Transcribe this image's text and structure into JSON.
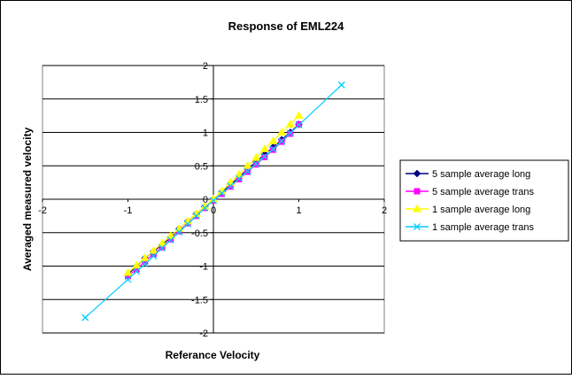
{
  "chart_data": {
    "type": "scatter",
    "title": "Response of EML224",
    "xlabel": "Referance Velocity",
    "ylabel": "Averaged measured velocity",
    "xlim": [
      -2,
      2
    ],
    "ylim": [
      -2,
      2
    ],
    "x_ticks": [
      "-2",
      "-1",
      "0",
      "1",
      "2"
    ],
    "y_ticks": [
      "-2",
      "-1.5",
      "-1",
      "-0.5",
      "0",
      "0.5",
      "1",
      "1.5",
      "2"
    ],
    "grid": "horizontal",
    "legend_position": "right",
    "series": [
      {
        "name": "5 sample average long",
        "color": "#000080",
        "marker": "diamond",
        "points": [
          [
            -1.0,
            -1.13
          ],
          [
            -0.9,
            -1.0
          ],
          [
            -0.8,
            -0.88
          ],
          [
            -0.7,
            -0.78
          ],
          [
            -0.6,
            -0.68
          ],
          [
            -0.5,
            -0.57
          ],
          [
            -0.4,
            -0.44
          ],
          [
            -0.3,
            -0.33
          ],
          [
            -0.2,
            -0.22
          ],
          [
            -0.1,
            -0.11
          ],
          [
            0.0,
            0.0
          ],
          [
            0.1,
            0.11
          ],
          [
            0.2,
            0.22
          ],
          [
            0.3,
            0.33
          ],
          [
            0.4,
            0.45
          ],
          [
            0.5,
            0.56
          ],
          [
            0.6,
            0.67
          ],
          [
            0.7,
            0.78
          ],
          [
            0.8,
            0.89
          ],
          [
            0.9,
            1.0
          ],
          [
            1.0,
            1.12
          ]
        ]
      },
      {
        "name": "5 sample average trans",
        "color": "#FF00FF",
        "marker": "square",
        "points": [
          [
            -1.0,
            -1.15
          ],
          [
            -0.9,
            -1.05
          ],
          [
            -0.8,
            -0.93
          ],
          [
            -0.7,
            -0.82
          ],
          [
            -0.6,
            -0.72
          ],
          [
            -0.5,
            -0.6
          ],
          [
            -0.4,
            -0.48
          ],
          [
            -0.3,
            -0.36
          ],
          [
            -0.2,
            -0.25
          ],
          [
            -0.1,
            -0.13
          ],
          [
            0.0,
            -0.02
          ],
          [
            0.1,
            0.08
          ],
          [
            0.2,
            0.19
          ],
          [
            0.3,
            0.3
          ],
          [
            0.4,
            0.41
          ],
          [
            0.5,
            0.52
          ],
          [
            0.6,
            0.63
          ],
          [
            0.7,
            0.74
          ],
          [
            0.8,
            0.86
          ],
          [
            0.9,
            0.98
          ],
          [
            1.0,
            1.12
          ]
        ]
      },
      {
        "name": "1 sample average long",
        "color": "#FFFF00",
        "marker": "triangle",
        "points": [
          [
            -1.0,
            -1.1
          ],
          [
            -0.9,
            -0.99
          ],
          [
            -0.8,
            -0.88
          ],
          [
            -0.7,
            -0.77
          ],
          [
            -0.6,
            -0.66
          ],
          [
            -0.5,
            -0.55
          ],
          [
            -0.4,
            -0.44
          ],
          [
            -0.3,
            -0.33
          ],
          [
            -0.2,
            -0.22
          ],
          [
            -0.1,
            -0.11
          ],
          [
            0.0,
            0.0
          ],
          [
            0.1,
            0.12
          ],
          [
            0.2,
            0.25
          ],
          [
            0.3,
            0.37
          ],
          [
            0.4,
            0.5
          ],
          [
            0.5,
            0.62
          ],
          [
            0.6,
            0.75
          ],
          [
            0.7,
            0.87
          ],
          [
            0.8,
            1.0
          ],
          [
            0.9,
            1.12
          ],
          [
            1.0,
            1.25
          ]
        ]
      },
      {
        "name": "1 sample average trans",
        "color": "#00CCFF",
        "marker": "x",
        "points": [
          [
            -1.5,
            -1.77
          ],
          [
            -1.0,
            -1.2
          ],
          [
            -0.9,
            -1.08
          ],
          [
            -0.8,
            -0.97
          ],
          [
            -0.7,
            -0.85
          ],
          [
            -0.6,
            -0.73
          ],
          [
            -0.5,
            -0.61
          ],
          [
            -0.4,
            -0.49
          ],
          [
            -0.3,
            -0.37
          ],
          [
            -0.2,
            -0.25
          ],
          [
            -0.1,
            -0.13
          ],
          [
            0.0,
            -0.02
          ],
          [
            0.1,
            0.09
          ],
          [
            0.2,
            0.2
          ],
          [
            0.3,
            0.31
          ],
          [
            0.4,
            0.42
          ],
          [
            0.5,
            0.53
          ],
          [
            0.6,
            0.64
          ],
          [
            0.7,
            0.75
          ],
          [
            0.8,
            0.87
          ],
          [
            0.9,
            0.99
          ],
          [
            1.0,
            1.11
          ],
          [
            1.5,
            1.71
          ]
        ]
      }
    ]
  }
}
